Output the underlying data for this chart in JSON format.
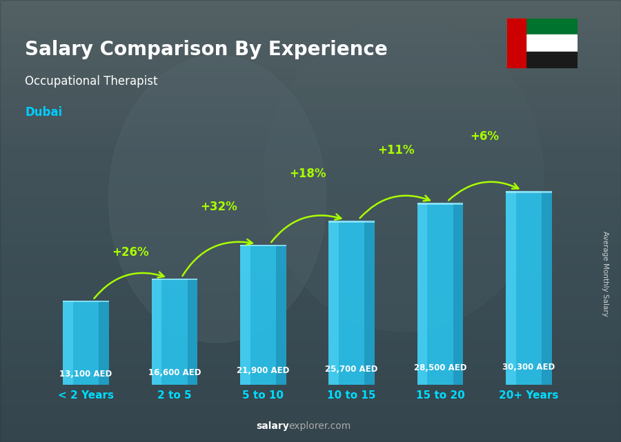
{
  "title_line1": "Salary Comparison By Experience",
  "subtitle_line1": "Occupational Therapist",
  "subtitle_line2": "Dubai",
  "categories": [
    "< 2 Years",
    "2 to 5",
    "5 to 10",
    "10 to 15",
    "15 to 20",
    "20+ Years"
  ],
  "values": [
    13100,
    16600,
    21900,
    25700,
    28500,
    30300
  ],
  "value_labels": [
    "13,100 AED",
    "16,600 AED",
    "21,900 AED",
    "25,700 AED",
    "28,500 AED",
    "30,300 AED"
  ],
  "pct_labels": [
    null,
    "+26%",
    "+32%",
    "+18%",
    "+11%",
    "+6%"
  ],
  "bar_color_face": "#29c5f0",
  "bar_color_dark": "#1a8ab0",
  "bar_color_light": "#55d8f8",
  "bg_color": "#3a4f5c",
  "overlay_color": "#2c3e4a",
  "title_color": "#ffffff",
  "subtitle1_color": "#ffffff",
  "subtitle2_color": "#00ccff",
  "label_color": "#ffffff",
  "pct_color": "#aaff00",
  "xticklabel_color": "#00ddff",
  "footer_salary_color": "#ffffff",
  "footer_explorer_color": "#aaaaaa",
  "ylabel_text": "Average Monthly Salary",
  "footer_salary": "salary",
  "footer_explorer": "explorer.com",
  "ylim_max": 36000,
  "bar_width": 0.52
}
